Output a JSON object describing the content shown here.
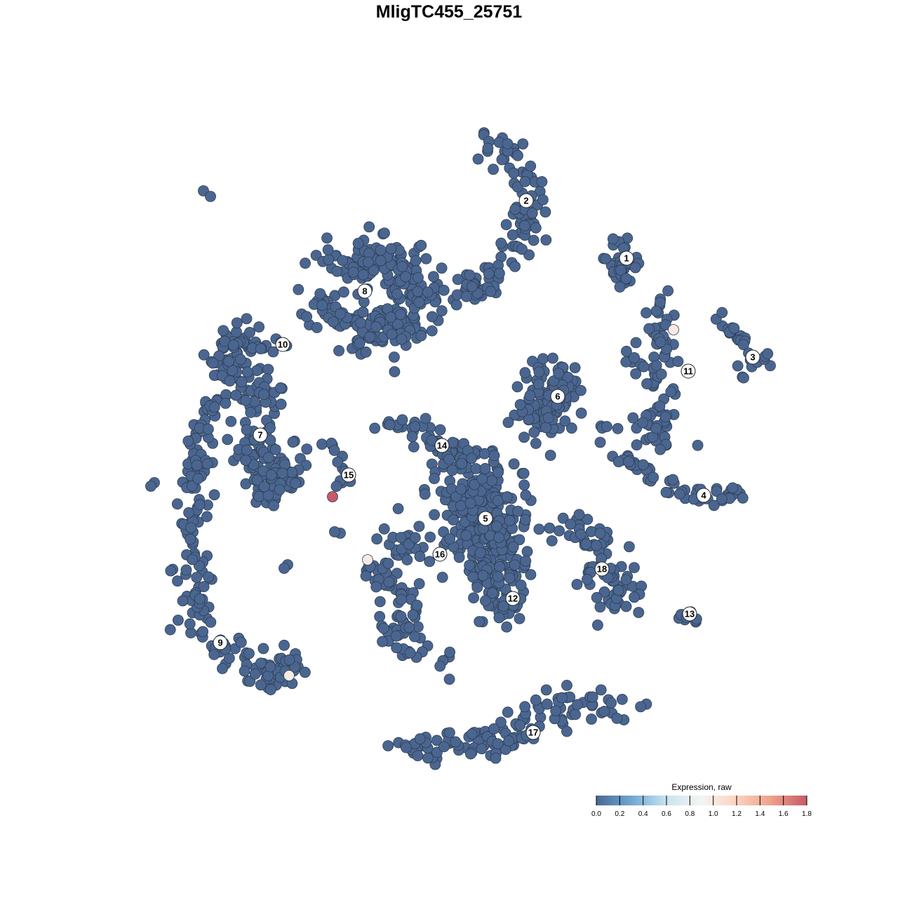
{
  "chart_data": {
    "type": "scatter",
    "title": "MligTC455_25751",
    "xlabel": "",
    "ylabel": "",
    "xlim": [
      -50,
      50
    ],
    "ylim": [
      -50,
      50
    ],
    "grid": false,
    "point_color_default": "#4a6690",
    "clusters": [
      {
        "id": "1",
        "label_pos": [
          25.3,
          27.2
        ],
        "spread": 1.5,
        "n": 40,
        "anchors": [
          [
            23,
            30
          ],
          [
            25.5,
            26.5
          ],
          [
            24.5,
            24.5
          ]
        ]
      },
      {
        "id": "2",
        "label_pos": [
          11,
          35.4
        ],
        "spread": 1.8,
        "n": 110,
        "anchors": [
          [
            5.5,
            44
          ],
          [
            10,
            41
          ],
          [
            12,
            35
          ],
          [
            10,
            30
          ],
          [
            7.5,
            26
          ],
          [
            5,
            23
          ],
          [
            2.5,
            22.5
          ]
        ]
      },
      {
        "id": "3",
        "label_pos": [
          43.3,
          13.1
        ],
        "spread": 1,
        "n": 30,
        "anchors": [
          [
            39,
            19
          ],
          [
            41,
            16
          ],
          [
            43,
            13
          ],
          [
            46,
            12.2
          ],
          [
            41,
            10.5
          ]
        ]
      },
      {
        "id": "4",
        "label_pos": [
          36.3,
          -6.6
        ],
        "spread": 1,
        "n": 60,
        "anchors": [
          [
            22,
            3.5
          ],
          [
            25,
            -1.5
          ],
          [
            30,
            -5
          ],
          [
            36,
            -7
          ],
          [
            41.5,
            -6.8
          ]
        ]
      },
      {
        "id": "5",
        "label_pos": [
          5.2,
          -9.9
        ],
        "spread": 4,
        "n": 300,
        "anchors": [
          [
            1,
            -5
          ],
          [
            6,
            -8
          ],
          [
            5,
            -13
          ],
          [
            8,
            -16
          ]
        ]
      },
      {
        "id": "6",
        "label_pos": [
          15.5,
          7.5
        ],
        "spread": 2.5,
        "n": 110,
        "anchors": [
          [
            12,
            11
          ],
          [
            16,
            10
          ],
          [
            16,
            7
          ],
          [
            12,
            5
          ],
          [
            14,
            2
          ]
        ]
      },
      {
        "id": "7",
        "label_pos": [
          -26.9,
          2
        ],
        "spread": 2.2,
        "n": 120,
        "anchors": [
          [
            -28,
            4
          ],
          [
            -27,
            -1
          ],
          [
            -24,
            -4
          ],
          [
            -25,
            -7
          ],
          [
            -22.5,
            -1
          ]
        ]
      },
      {
        "id": "8",
        "label_pos": [
          -12,
          22.5
        ],
        "spread": 3,
        "n": 250,
        "anchors": [
          [
            -17,
            26
          ],
          [
            -8,
            27
          ],
          [
            -4,
            22
          ],
          [
            -6,
            17
          ],
          [
            -12,
            18
          ],
          [
            -19,
            20
          ]
        ]
      },
      {
        "id": "9",
        "label_pos": [
          -32.6,
          -27.6
        ],
        "spread": 1.8,
        "n": 70,
        "anchors": [
          [
            -35,
            -26
          ],
          [
            -30,
            -30
          ],
          [
            -25,
            -33
          ],
          [
            -21.5,
            -29
          ]
        ]
      },
      {
        "id": "10",
        "label_pos": [
          -23.7,
          14.9
        ],
        "spread": 1.8,
        "n": 220,
        "anchors": [
          [
            -24,
            15
          ],
          [
            -31,
            16
          ],
          [
            -33,
            12
          ],
          [
            -28,
            10
          ],
          [
            -26,
            7
          ],
          [
            -34,
            7
          ],
          [
            -35,
            2
          ],
          [
            -36,
            -4
          ],
          [
            -36.8,
            -11
          ],
          [
            -37,
            -18
          ],
          [
            -36,
            -24
          ]
        ]
      },
      {
        "id": "11",
        "label_pos": [
          34.1,
          11.1
        ],
        "spread": 1.5,
        "n": 90,
        "anchors": [
          [
            29.5,
            20
          ],
          [
            30.5,
            16
          ],
          [
            32,
            12
          ],
          [
            25,
            13.5
          ],
          [
            32.5,
            7
          ],
          [
            30,
            4
          ],
          [
            28,
            2.5
          ],
          [
            34,
            1
          ]
        ]
      },
      {
        "id": "12",
        "label_pos": [
          9.1,
          -21.3
        ],
        "spread": 2,
        "n": 50,
        "anchors": [
          [
            6,
            -18
          ],
          [
            9,
            -21
          ],
          [
            7,
            -23.5
          ]
        ]
      },
      {
        "id": "13",
        "label_pos": [
          34.3,
          -23.5
        ],
        "spread": 0.8,
        "n": 12,
        "anchors": [
          [
            32,
            -23.8
          ],
          [
            34.5,
            -24
          ],
          [
            37,
            -22.2
          ]
        ]
      },
      {
        "id": "14",
        "label_pos": [
          -1,
          0.5
        ],
        "spread": 1.5,
        "n": 60,
        "anchors": [
          [
            -11,
            3
          ],
          [
            -5,
            4
          ],
          [
            -2,
            1
          ],
          [
            1,
            -1
          ],
          [
            6,
            -2
          ]
        ]
      },
      {
        "id": "15",
        "label_pos": [
          -14.3,
          -3.7
        ],
        "spread": 0.8,
        "n": 12,
        "anchors": [
          [
            -18,
            1.5
          ],
          [
            -15,
            -1
          ],
          [
            -14.5,
            -4
          ],
          [
            -16,
            -6
          ]
        ]
      },
      {
        "id": "16",
        "label_pos": [
          -1.3,
          -15
        ],
        "spread": 2,
        "n": 100,
        "anchors": [
          [
            -8,
            -12
          ],
          [
            -4,
            -14
          ],
          [
            -11,
            -18
          ],
          [
            -5,
            -22
          ],
          [
            -8,
            -27
          ],
          [
            0,
            -31
          ]
        ]
      },
      {
        "id": "17",
        "label_pos": [
          12,
          -40.4
        ],
        "spread": 1.8,
        "n": 120,
        "anchors": [
          [
            -6,
            -42.5
          ],
          [
            1,
            -42
          ],
          [
            7,
            -42
          ],
          [
            12,
            -38
          ],
          [
            18,
            -36
          ],
          [
            25,
            -37
          ]
        ]
      },
      {
        "id": "18",
        "label_pos": [
          21.8,
          -17.1
        ],
        "spread": 2,
        "n": 80,
        "anchors": [
          [
            17,
            -11
          ],
          [
            22,
            -13
          ],
          [
            20,
            -18
          ],
          [
            26,
            -19
          ],
          [
            22,
            -24
          ]
        ]
      }
    ],
    "outliers": [
      [
        -35,
        36.8
      ],
      [
        -34,
        36
      ],
      [
        -42,
        -4.8
      ],
      [
        -42.5,
        -5.3
      ],
      [
        -23,
        -16.5
      ],
      [
        -23.5,
        -17
      ],
      [
        -15.5,
        -12
      ],
      [
        -16.3,
        -11.8
      ]
    ],
    "expressing_points": [
      {
        "x": -16.6,
        "y": -6.8,
        "value": 1.8
      },
      {
        "x": 32,
        "y": 17,
        "value": 1.0
      },
      {
        "x": -11.6,
        "y": -15.8,
        "value": 1.0
      },
      {
        "x": -22.8,
        "y": -32.3,
        "value": 1.0
      }
    ],
    "colorbar": {
      "title": "Expression, raw",
      "range": [
        0,
        1.8
      ],
      "ticks": [
        "0.0",
        "0.2",
        "0.4",
        "0.6",
        "0.8",
        "1.0",
        "1.2",
        "1.4",
        "1.6",
        "1.8"
      ],
      "colors": [
        "#4a6894",
        "#6fa8d2",
        "#c9e3ef",
        "#f5f5f5",
        "#fbd3bf",
        "#eda08a",
        "#c65a6a"
      ]
    }
  }
}
